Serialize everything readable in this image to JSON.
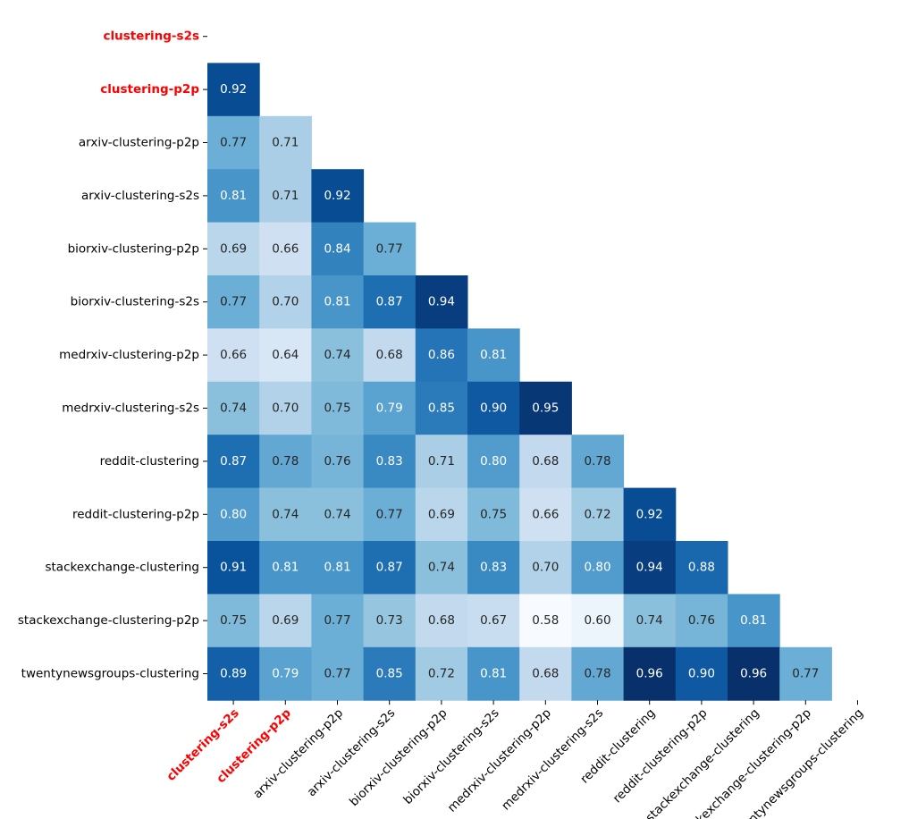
{
  "chart_data": {
    "type": "heatmap",
    "title": "",
    "xlabel": "",
    "ylabel": "",
    "mask": "lower-triangle",
    "colormap": "Blues",
    "vmin": 0.58,
    "vmax": 0.96,
    "labels": [
      "clustering-s2s",
      "clustering-p2p",
      "arxiv-clustering-p2p",
      "arxiv-clustering-s2s",
      "biorxiv-clustering-p2p",
      "biorxiv-clustering-s2s",
      "medrxiv-clustering-p2p",
      "medrxiv-clustering-s2s",
      "reddit-clustering",
      "reddit-clustering-p2p",
      "stackexchange-clustering",
      "stackexchange-clustering-p2p",
      "twentynewsgroups-clustering"
    ],
    "highlighted_labels": [
      "clustering-s2s",
      "clustering-p2p"
    ],
    "highlight_color": "#ff0000",
    "rows": [
      {
        "label": "clustering-s2s",
        "values": []
      },
      {
        "label": "clustering-p2p",
        "values": [
          "0.92"
        ]
      },
      {
        "label": "arxiv-clustering-p2p",
        "values": [
          "0.77",
          "0.71"
        ]
      },
      {
        "label": "arxiv-clustering-s2s",
        "values": [
          "0.81",
          "0.71",
          "0.92"
        ]
      },
      {
        "label": "biorxiv-clustering-p2p",
        "values": [
          "0.69",
          "0.66",
          "0.84",
          "0.77"
        ]
      },
      {
        "label": "biorxiv-clustering-s2s",
        "values": [
          "0.77",
          "0.70",
          "0.81",
          "0.87",
          "0.94"
        ]
      },
      {
        "label": "medrxiv-clustering-p2p",
        "values": [
          "0.66",
          "0.64",
          "0.74",
          "0.68",
          "0.86",
          "0.81"
        ]
      },
      {
        "label": "medrxiv-clustering-s2s",
        "values": [
          "0.74",
          "0.70",
          "0.75",
          "0.79",
          "0.85",
          "0.90",
          "0.95"
        ]
      },
      {
        "label": "reddit-clustering",
        "values": [
          "0.87",
          "0.78",
          "0.76",
          "0.83",
          "0.71",
          "0.80",
          "0.68",
          "0.78"
        ]
      },
      {
        "label": "reddit-clustering-p2p",
        "values": [
          "0.80",
          "0.74",
          "0.74",
          "0.77",
          "0.69",
          "0.75",
          "0.66",
          "0.72",
          "0.92"
        ]
      },
      {
        "label": "stackexchange-clustering",
        "values": [
          "0.91",
          "0.81",
          "0.81",
          "0.87",
          "0.74",
          "0.83",
          "0.70",
          "0.80",
          "0.94",
          "0.88"
        ]
      },
      {
        "label": "stackexchange-clustering-p2p",
        "values": [
          "0.75",
          "0.69",
          "0.77",
          "0.73",
          "0.68",
          "0.67",
          "0.58",
          "0.60",
          "0.74",
          "0.76",
          "0.81"
        ]
      },
      {
        "label": "twentynewsgroups-clustering",
        "values": [
          "0.89",
          "0.79",
          "0.77",
          "0.85",
          "0.72",
          "0.81",
          "0.68",
          "0.78",
          "0.96",
          "0.90",
          "0.96",
          "0.77"
        ]
      }
    ]
  }
}
